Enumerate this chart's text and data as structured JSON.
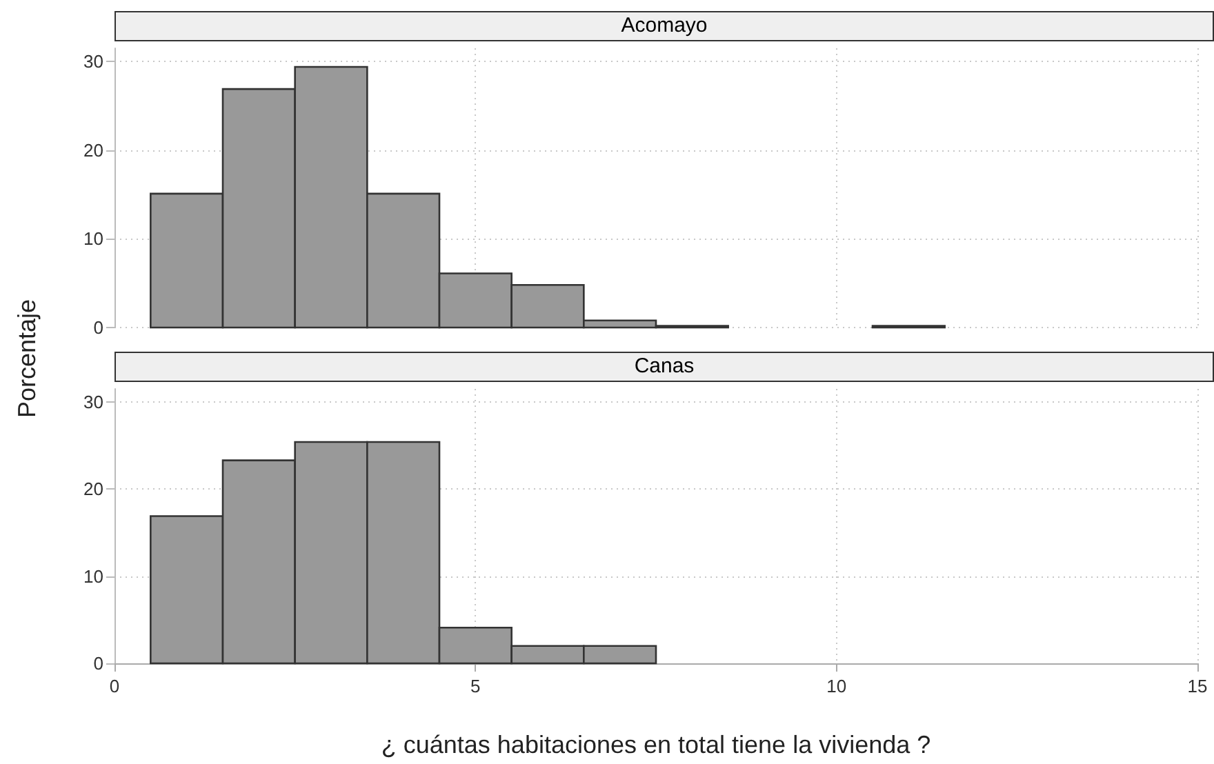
{
  "chart_data": [
    {
      "type": "histogram",
      "title": "Acomayo",
      "ylabel": "Porcentaje",
      "bins": [
        0.5,
        1.5,
        2.5,
        3.5,
        4.5,
        5.5,
        6.5,
        7.5,
        8.5,
        9.5,
        10.5,
        11.5
      ],
      "values": [
        15.1,
        26.9,
        29.4,
        15.1,
        6.1,
        4.8,
        0.8,
        0.2,
        0,
        0,
        0.2
      ],
      "color": "#999999",
      "xlim": [
        0,
        15
      ],
      "xticks": [
        0,
        5,
        10,
        15
      ],
      "ylim": [
        0,
        31.5
      ],
      "yticks": [
        0,
        10,
        20,
        30
      ],
      "grid": true,
      "tick_labels": "y"
    },
    {
      "type": "histogram",
      "title": "Canas",
      "xlabel": "¿ cuántas habitaciones en total tiene la vivienda ?",
      "bins": [
        0.5,
        1.5,
        2.5,
        3.5,
        4.5,
        5.5,
        6.5,
        7.5
      ],
      "values": [
        16.9,
        23.3,
        25.4,
        25.4,
        4.1,
        2.0,
        2.0
      ],
      "color": "#999999",
      "xlim": [
        0,
        15
      ],
      "xticks": [
        0,
        5,
        10,
        15
      ],
      "ylim": [
        0,
        31.5
      ],
      "yticks": [
        0,
        10,
        20,
        30
      ],
      "grid": true
    }
  ]
}
